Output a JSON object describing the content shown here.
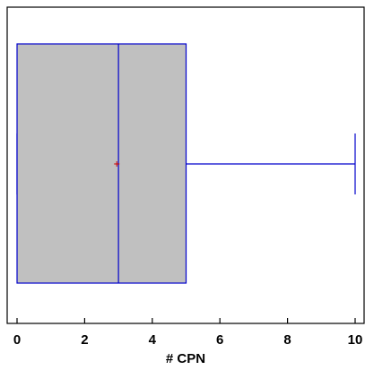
{
  "chart_data": {
    "type": "boxplot",
    "orientation": "horizontal",
    "xlabel": "# CPN",
    "xlim": [
      0,
      10.25
    ],
    "xticks": [
      0,
      2,
      4,
      6,
      8,
      10
    ],
    "xtick_labels": [
      "0",
      "2",
      "4",
      "6",
      "8",
      "10"
    ],
    "grid": false,
    "box": {
      "min": 0,
      "q1": 0,
      "median": 3,
      "q3": 5,
      "max": 10,
      "mean": 2.95
    },
    "colors": {
      "box_fill": "#c0c0c0",
      "box_stroke": "#0000cc",
      "mean_marker": "#cc0000",
      "axis": "#000000"
    }
  }
}
